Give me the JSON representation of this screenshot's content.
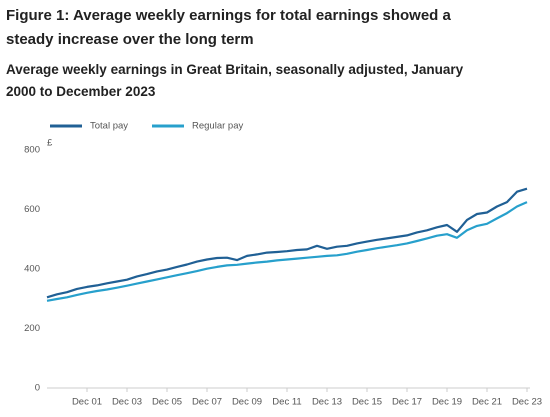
{
  "title": "Figure 1: Average weekly earnings for total earnings showed a steady increase over the long term",
  "chart_data": {
    "type": "line",
    "subtitle": "Average weekly earnings in Great Britain, seasonally adjusted, January 2000 to December 2023",
    "y_unit": "£",
    "categories": [
      null,
      null,
      null,
      null,
      "Dec 01",
      null,
      null,
      null,
      "Dec 03",
      null,
      null,
      null,
      "Dec 05",
      null,
      null,
      null,
      "Dec 07",
      null,
      null,
      null,
      "Dec 09",
      null,
      null,
      null,
      "Dec 11",
      null,
      null,
      null,
      "Dec 13",
      null,
      null,
      null,
      "Dec 15",
      null,
      null,
      null,
      "Dec 17",
      null,
      null,
      null,
      "Dec 19",
      null,
      null,
      null,
      "Dec 21",
      null,
      null,
      null,
      "Dec 23"
    ],
    "series": [
      {
        "name": "Total pay",
        "color": "#206095",
        "values": [
          305,
          315,
          322,
          333,
          340,
          345,
          352,
          358,
          364,
          375,
          383,
          392,
          398,
          407,
          415,
          425,
          432,
          437,
          438,
          430,
          444,
          449,
          455,
          457,
          460,
          464,
          466,
          478,
          468,
          475,
          478,
          486,
          492,
          498,
          503,
          508,
          513,
          523,
          530,
          540,
          548,
          525,
          565,
          585,
          590,
          610,
          625,
          660,
          670
        ]
      },
      {
        "name": "Regular pay",
        "color": "#27a0cc",
        "values": [
          293,
          299,
          305,
          313,
          320,
          326,
          331,
          337,
          344,
          351,
          358,
          365,
          372,
          379,
          386,
          393,
          401,
          407,
          412,
          414,
          418,
          422,
          425,
          429,
          432,
          435,
          438,
          441,
          444,
          446,
          451,
          458,
          464,
          470,
          475,
          480,
          486,
          494,
          503,
          512,
          517,
          505,
          530,
          545,
          552,
          570,
          588,
          610,
          625
        ]
      }
    ],
    "ylim": [
      0,
      800
    ],
    "yticks": [
      0,
      200,
      400,
      600,
      800
    ],
    "grid": false
  }
}
